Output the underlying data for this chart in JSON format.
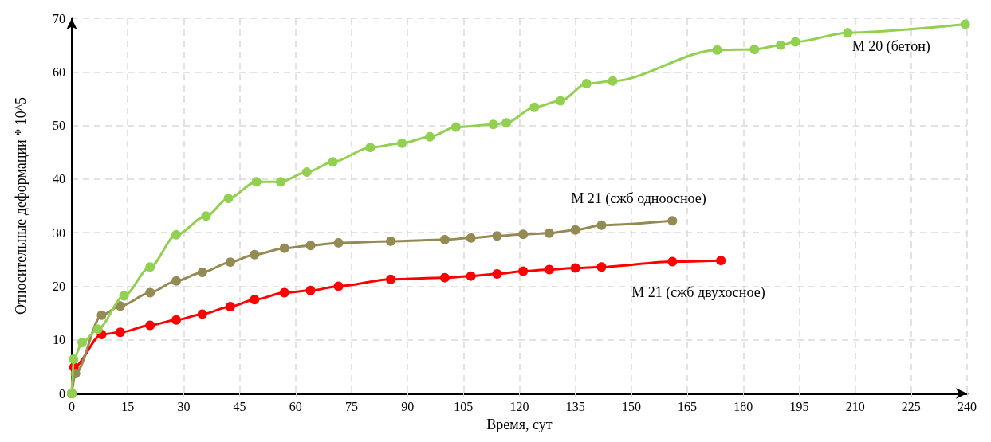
{
  "chart_data": {
    "type": "line",
    "xlabel": "Время, сут",
    "ylabel": "Относительные деформации * 10^5",
    "xlim": [
      0,
      240
    ],
    "xticks": [
      0,
      15,
      30,
      45,
      60,
      75,
      90,
      105,
      120,
      135,
      150,
      165,
      180,
      195,
      210,
      225,
      240
    ],
    "ylim": [
      0,
      70
    ],
    "yticks": [
      0,
      10,
      20,
      30,
      40,
      50,
      60,
      70
    ],
    "grid": true,
    "legend": false,
    "marker": "circle",
    "line_style": "solid",
    "series": [
      {
        "name": "M 20 (бетон)",
        "color": "#92d050",
        "x": [
          0,
          0.5,
          2.8,
          7,
          14,
          21,
          28,
          36,
          42,
          49.5,
          56,
          63,
          70,
          80,
          88.5,
          96,
          103,
          113,
          116.5,
          124,
          131,
          138,
          145,
          173,
          183,
          190,
          194,
          208,
          239.5
        ],
        "values": [
          0,
          6.4,
          9.5,
          12,
          18.2,
          23.6,
          29.6,
          33.1,
          36.4,
          39.5,
          39.5,
          41.3,
          43.2,
          45.9,
          46.7,
          47.9,
          49.7,
          50.2,
          50.5,
          53.4,
          54.6,
          57.8,
          58.3,
          64.1,
          64.2,
          65,
          65.6,
          67.3,
          68.9
        ]
      },
      {
        "name": "M 21 (сжб одноосное)",
        "color": "#948a54",
        "x": [
          0,
          1,
          8,
          13,
          21,
          28,
          35,
          42.5,
          49,
          57,
          64,
          71.5,
          85.5,
          100,
          107,
          114,
          121,
          128,
          135,
          142,
          161
        ],
        "values": [
          0,
          3.7,
          14.6,
          16.3,
          18.8,
          21,
          22.6,
          24.5,
          25.9,
          27.1,
          27.6,
          28.1,
          28.4,
          28.7,
          29,
          29.4,
          29.7,
          29.9,
          30.5,
          31.4,
          32.2
        ]
      },
      {
        "name": "M 21 (сжб двухосное)",
        "color": "#ff0000",
        "x": [
          0,
          0.6,
          8,
          13,
          21,
          28,
          35,
          42.5,
          49,
          57,
          64,
          71.5,
          85.5,
          100,
          107,
          114,
          121,
          128,
          135,
          142,
          161,
          174
        ],
        "values": [
          0,
          4.9,
          11,
          11.4,
          12.7,
          13.7,
          14.8,
          16.2,
          17.5,
          18.8,
          19.2,
          20,
          21.3,
          21.6,
          21.9,
          22.3,
          22.8,
          23.1,
          23.4,
          23.6,
          24.6,
          24.8
        ]
      }
    ]
  }
}
